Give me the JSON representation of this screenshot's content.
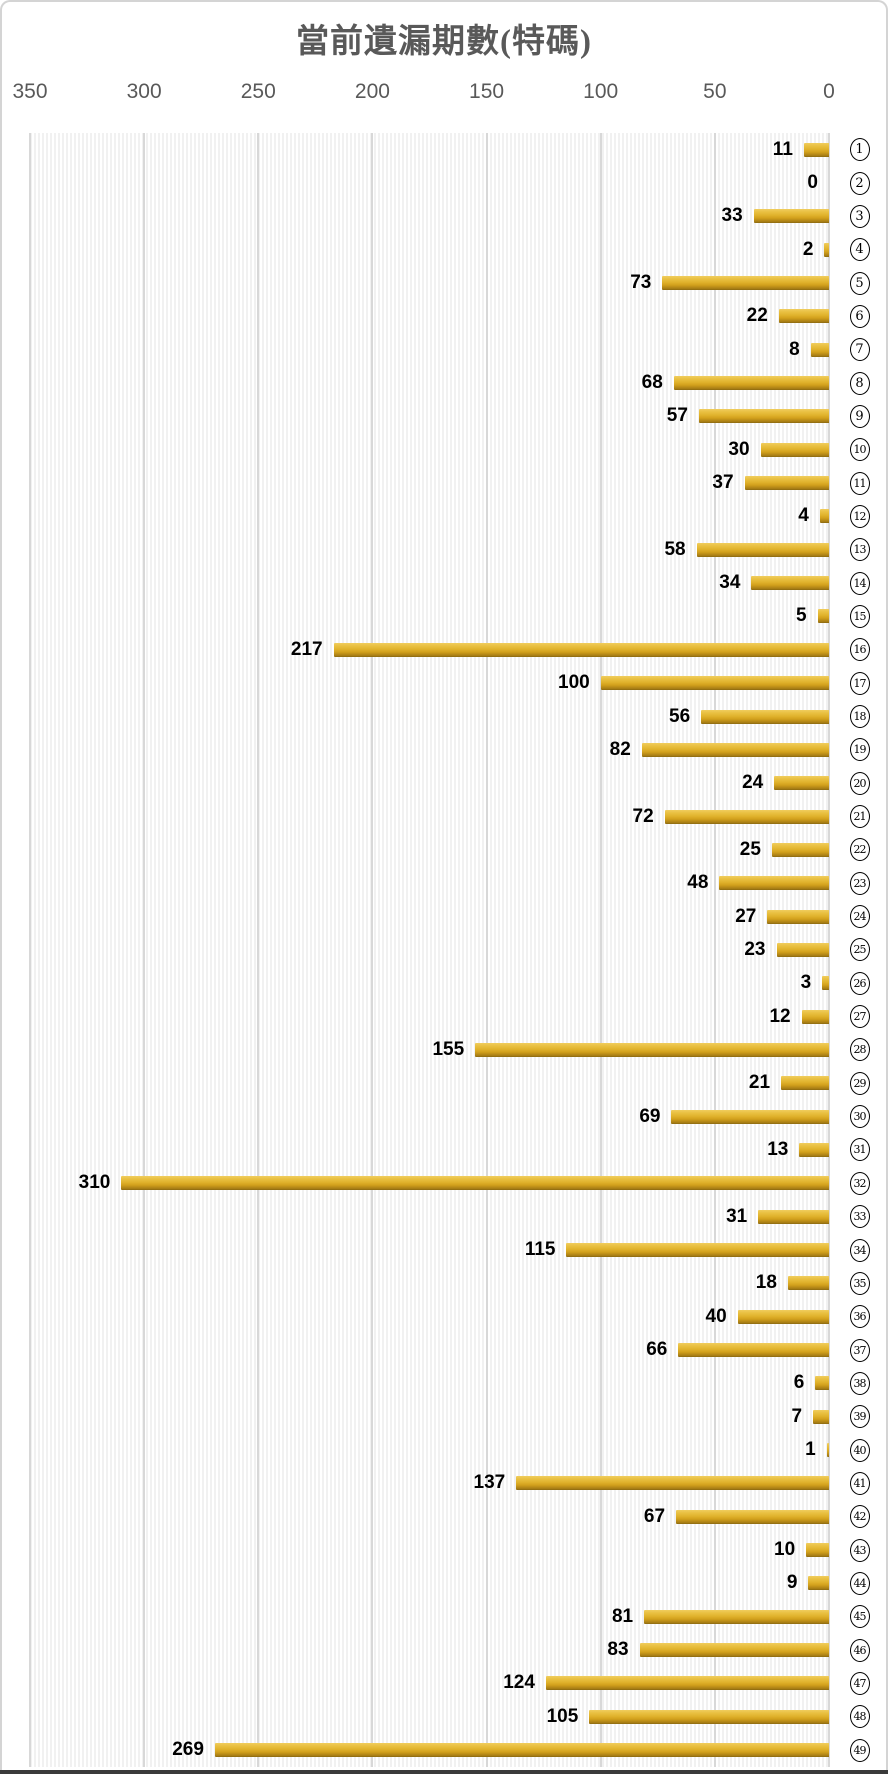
{
  "title": "當前遺漏期數(特碼)",
  "chart_data": {
    "type": "bar",
    "orientation": "horizontal",
    "bars_anchored": "right",
    "title": "當前遺漏期數(特碼)",
    "categories": [
      1,
      2,
      3,
      4,
      5,
      6,
      7,
      8,
      9,
      10,
      11,
      12,
      13,
      14,
      15,
      16,
      17,
      18,
      19,
      20,
      21,
      22,
      23,
      24,
      25,
      26,
      27,
      28,
      29,
      30,
      31,
      32,
      33,
      34,
      35,
      36,
      37,
      38,
      39,
      40,
      41,
      42,
      43,
      44,
      45,
      46,
      47,
      48,
      49
    ],
    "category_style": "circled-number",
    "values": [
      11,
      0,
      33,
      2,
      73,
      22,
      8,
      68,
      57,
      30,
      37,
      4,
      58,
      34,
      5,
      217,
      100,
      56,
      82,
      24,
      72,
      25,
      48,
      27,
      23,
      3,
      12,
      155,
      21,
      69,
      13,
      310,
      31,
      115,
      18,
      40,
      66,
      6,
      7,
      1,
      137,
      67,
      10,
      9,
      81,
      83,
      124,
      105,
      269
    ],
    "value_labels": true,
    "x_axis_position": "top",
    "x_tick_labels": [
      "350",
      "300",
      "250",
      "200",
      "150",
      "100",
      "50",
      "0"
    ],
    "x_ticks": [
      350,
      300,
      250,
      200,
      150,
      100,
      50,
      0
    ],
    "xmax": 350,
    "grid": true,
    "colors": {
      "bar_gold": "#d2a01c",
      "bar_highlight": "#f0cd5e",
      "bar_shadow": "#8a6810",
      "gridline": "#d8d8d8",
      "plot_stripe": "#f1f1f1",
      "axis_text": "#595959",
      "title_text": "#595959",
      "value_text": "#000000",
      "frame_border": "#d4d4d4",
      "bottom_edge": "#3a3a3a"
    }
  }
}
